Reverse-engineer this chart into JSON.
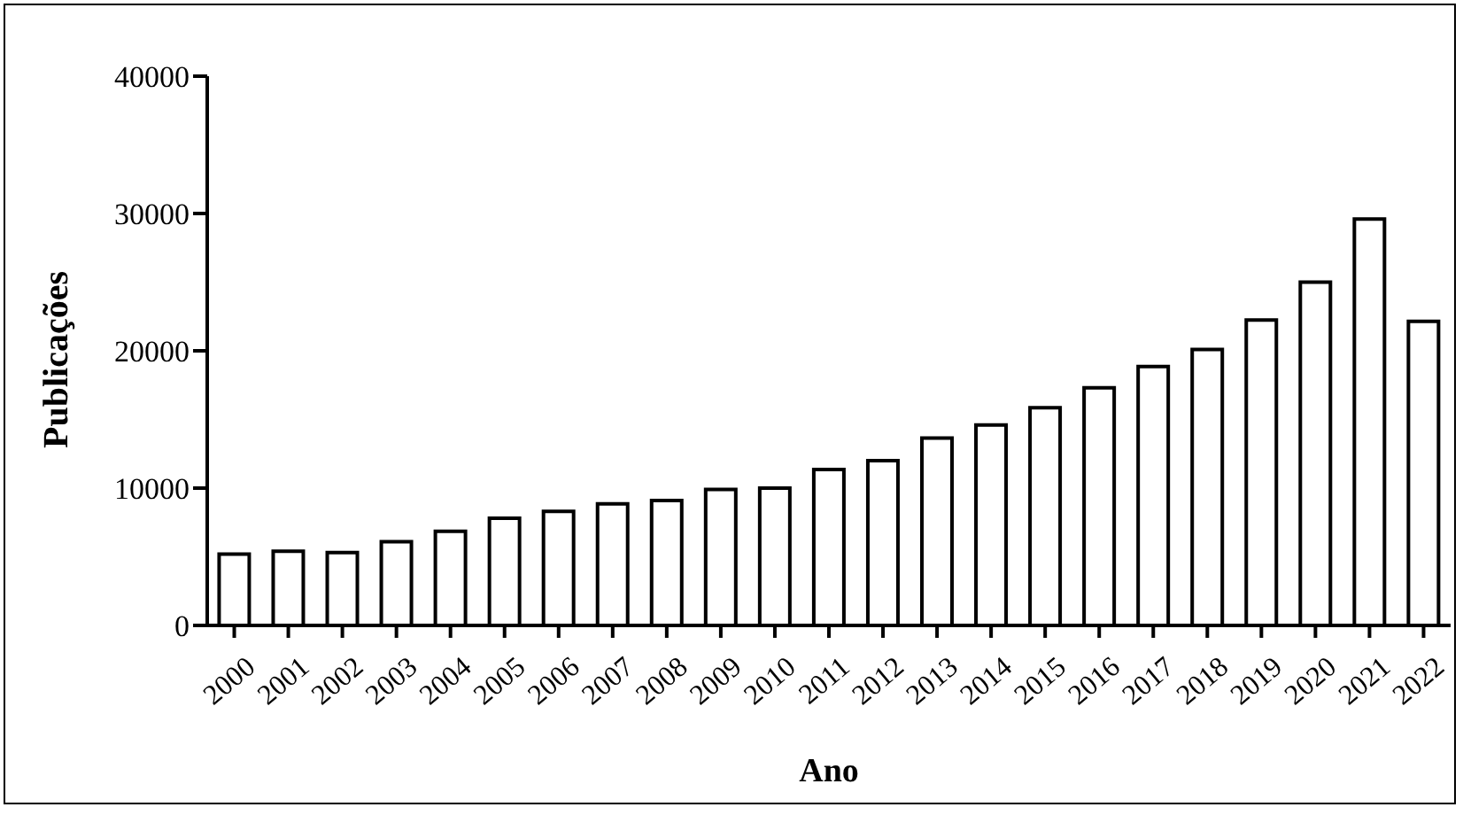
{
  "chart_data": {
    "type": "bar",
    "xlabel": "Ano",
    "ylabel": "Publicações",
    "categories": [
      "2000",
      "2001",
      "2002",
      "2003",
      "2004",
      "2005",
      "2006",
      "2007",
      "2008",
      "2009",
      "2010",
      "2011",
      "2012",
      "2013",
      "2014",
      "2015",
      "2016",
      "2017",
      "2018",
      "2019",
      "2020",
      "2021",
      "2022"
    ],
    "values": [
      5200,
      5400,
      5300,
      6100,
      6850,
      7800,
      8300,
      8850,
      9100,
      9900,
      10000,
      11350,
      12000,
      13650,
      14600,
      15850,
      17300,
      18850,
      20100,
      22250,
      25000,
      29600,
      22150
    ],
    "color": "#ffffff",
    "ylim": [
      0,
      40000
    ],
    "yticks": [
      0,
      10000,
      20000,
      30000,
      40000
    ],
    "grid": false,
    "legend": false
  }
}
